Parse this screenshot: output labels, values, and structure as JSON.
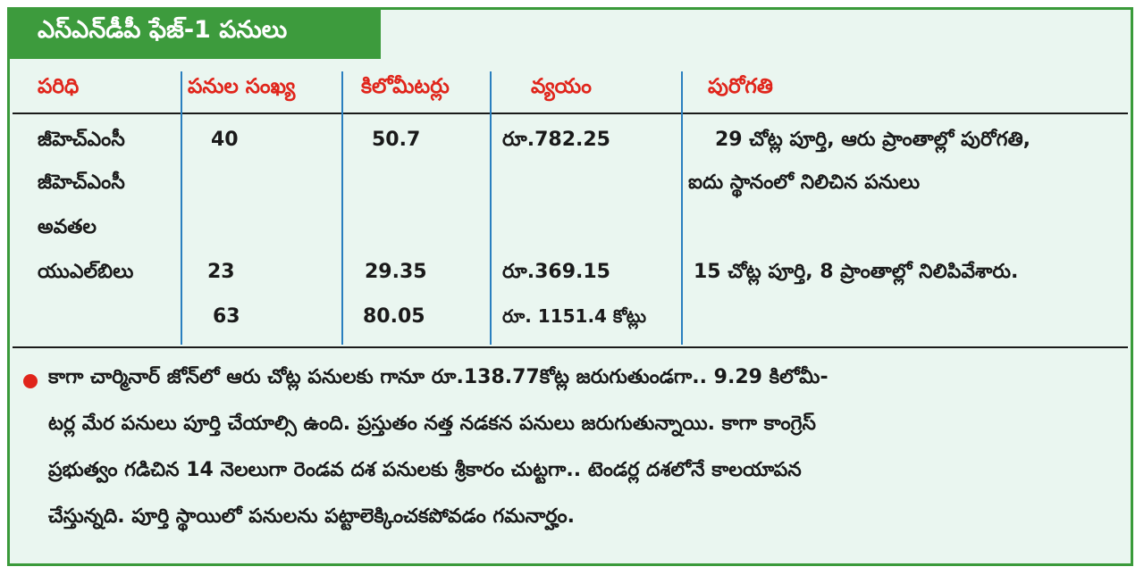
{
  "title": "ఎస్‌ఎన్‌డీపీ ఫేజ్‌-1 పనులు",
  "table": {
    "headers": [
      "పరిధి",
      "పనుల సంఖ్య",
      "కిలోమీటర్లు",
      "వ్యయం",
      "పురోగతి"
    ],
    "rows": [
      {
        "area_lines": [
          "జీహెచ్‌ఎంసీ",
          "జీహెచ్‌ఎంసీ",
          "అవతల"
        ],
        "count": "40",
        "km": "50.7",
        "cost": "రూ.782.25",
        "progress_lines": [
          "29 చోట్ల పూర్తి, ఆరు ప్రాంతాల్లో పురోగతి,",
          "ఐదు స్థానంలో నిలిచిన పనులు"
        ]
      },
      {
        "area_lines": [
          "యుఎల్‌బిలు"
        ],
        "count": "23",
        "km": "29.35",
        "cost": "రూ.369.15",
        "progress_lines": [
          "15 చోట్ల పూర్తి, 8 ప్రాంతాల్లో నిలిపివేశారు."
        ]
      }
    ],
    "total": {
      "count": "63",
      "km": "80.05",
      "cost": "రూ. 1151.4 కోట్లు"
    }
  },
  "note_lines": [
    "కాగా చార్మినార్‌ జోన్‌లో ఆరు చోట్ల పనులకు గానూ రూ.138.77కోట్ల జరుగుతుండగా.. 9.29 కిలోమీ-",
    "టర్ల మేర పనులు పూర్తి చేయాల్సి ఉంది. ప్రస్తుతం నత్త నడకన పనులు జరుగుతున్నాయి. కాగా కాంగ్రెస్‌",
    "ప్రభుత్వం గడిచిన 14 నెలలుగా రెండవ దశ పనులకు శ్రీకారం చుట్టగా.. టెండర్ల దశలోనే కాలయాపన",
    "చేస్తున్నది. పూర్తి స్థాయిలో పనులను పట్టాలెక్కించకపోవడం గమనార్హం."
  ],
  "colors": {
    "accent_green": "#3d9b3d",
    "header_red": "#e0251b",
    "background": "#eaf6f0",
    "divider_blue": "#2a7fbf"
  }
}
